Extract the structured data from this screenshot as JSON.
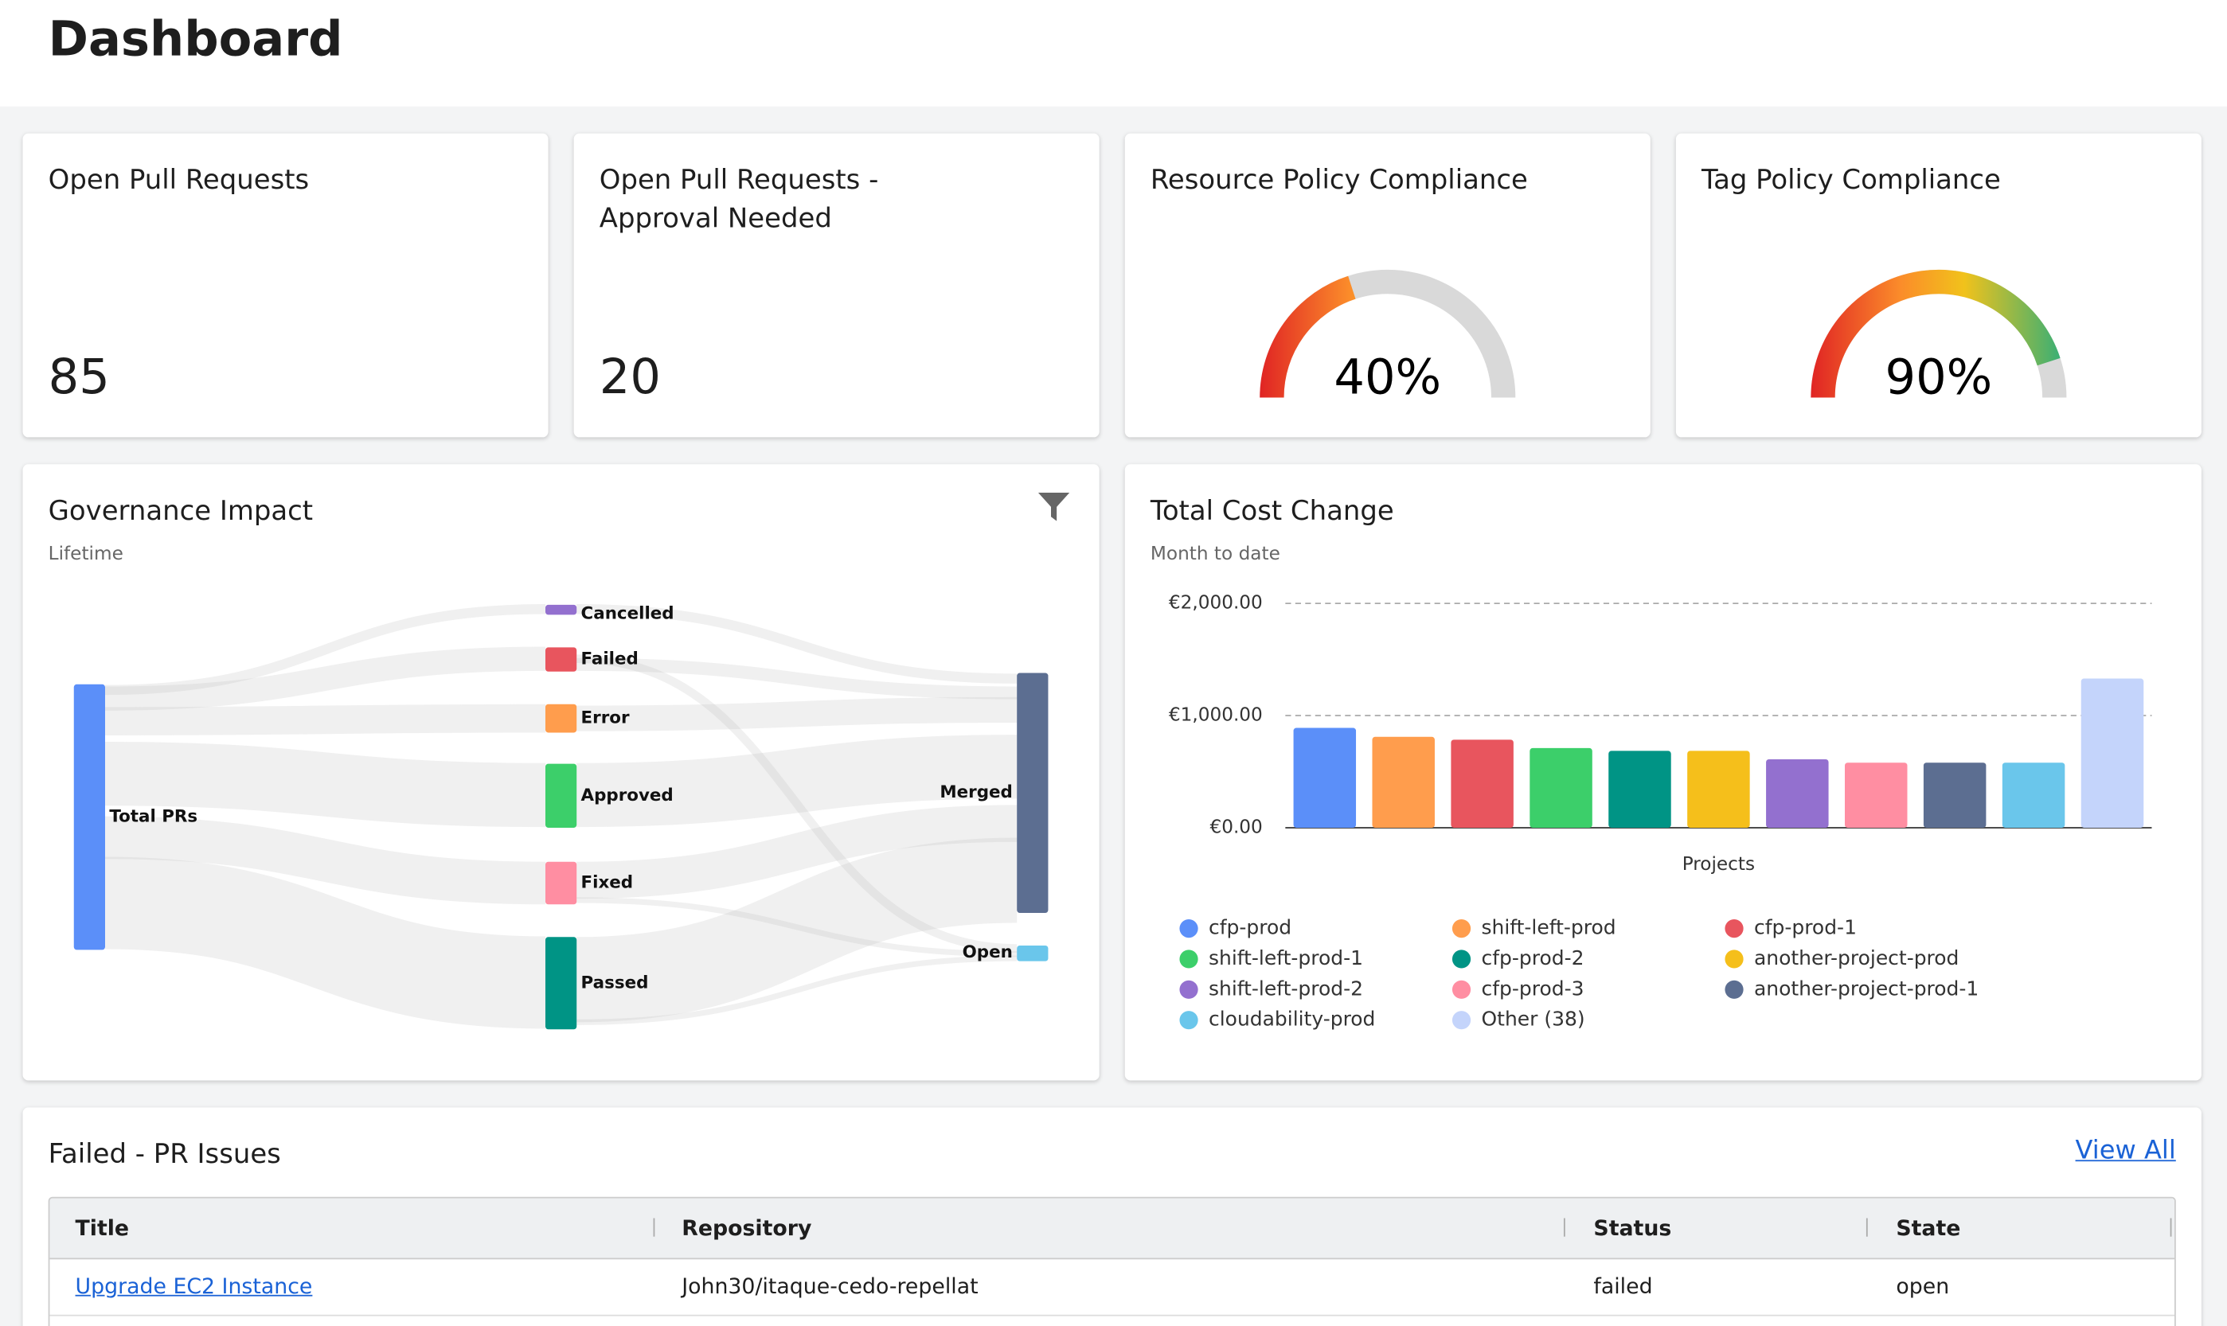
{
  "header": {
    "title": "Dashboard"
  },
  "kpis": [
    {
      "title": "Open Pull Requests",
      "value": "85"
    },
    {
      "title": "Open Pull Requests -\nApproval Needed",
      "value": "20"
    }
  ],
  "gauges": [
    {
      "title": "Resource Policy Compliance",
      "value": 40,
      "value_label": "40%"
    },
    {
      "title": "Tag Policy Compliance",
      "value": 90,
      "value_label": "90%"
    }
  ],
  "governance": {
    "title": "Governance Impact",
    "subtitle": "Lifetime",
    "nodes": [
      "Total PRs",
      "Cancelled",
      "Failed",
      "Error",
      "Approved",
      "Fixed",
      "Passed",
      "Merged",
      "Open"
    ]
  },
  "chart_data": {
    "type": "bar",
    "title": "Total Cost Change",
    "subtitle": "Month to date",
    "x_label": "Projects",
    "categories": [
      "cfp-prod",
      "shift-left-prod",
      "cfp-prod-1",
      "shift-left-prod-1",
      "cfp-prod-2",
      "another-project-prod",
      "shift-left-prod-2",
      "cfp-prod-3",
      "another-project-prod-1",
      "cloudability-prod",
      "Other (38)"
    ],
    "values": [
      890,
      810,
      785,
      710,
      685,
      685,
      610,
      580,
      580,
      580,
      1330
    ],
    "colors": [
      "#5b8ff9",
      "#ff9d4d",
      "#e8555e",
      "#3ccf6a",
      "#009485",
      "#f5bf1b",
      "#9370cf",
      "#ff8ea2",
      "#5c6e91",
      "#6ac6eb",
      "#c4d4fb"
    ],
    "ylim": [
      0,
      2000
    ],
    "yticks": [
      {
        "value": 0,
        "label": "€0.00"
      },
      {
        "value": 1000,
        "label": "€1,000.00"
      },
      {
        "value": 2000,
        "label": "€2,000.00"
      }
    ],
    "grid": true
  },
  "table": {
    "title": "Failed - PR Issues",
    "link": "View All",
    "columns": [
      "Title",
      "Repository",
      "Status",
      "State"
    ],
    "rows": [
      [
        "Upgrade EC2 Instance",
        "John30/itaque-cedo-repellat",
        "failed",
        "open"
      ]
    ]
  }
}
